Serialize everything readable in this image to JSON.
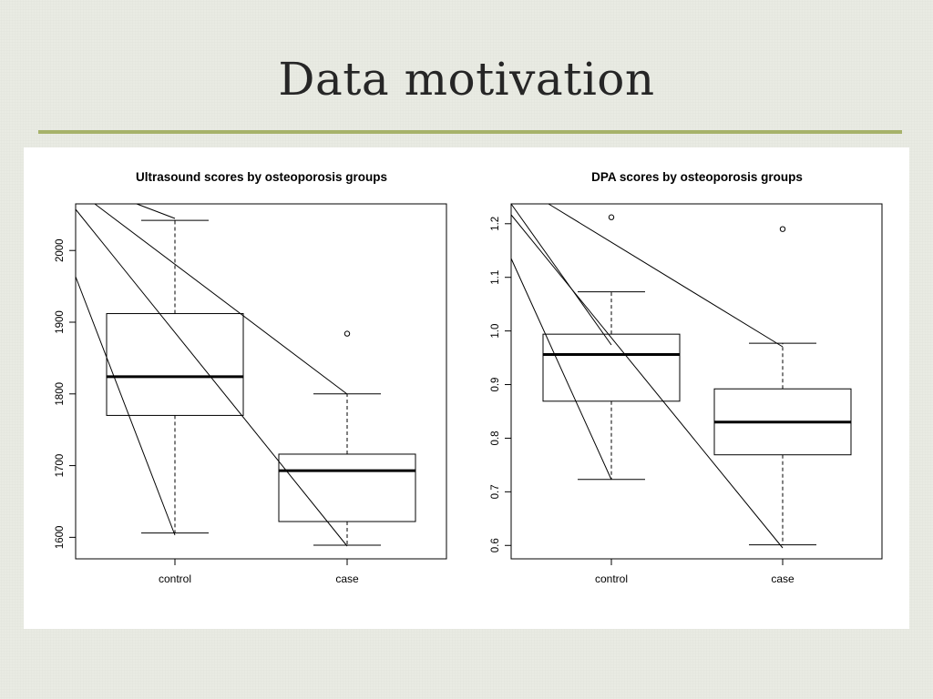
{
  "slide": {
    "title": "Data motivation",
    "accent_color": "#a6b26a"
  },
  "chart_data": [
    {
      "type": "boxplot",
      "title": "Ultrasound scores by osteoporosis groups",
      "xlabel": "",
      "ylabel": "",
      "categories": [
        "control",
        "case"
      ],
      "ylim": [
        1570,
        2065
      ],
      "yticks": [
        1600,
        1700,
        1800,
        1900,
        2000
      ],
      "boxes": [
        {
          "name": "control",
          "whisker_low": 1606,
          "q1": 1770,
          "median": 1824,
          "q3": 1912,
          "whisker_high": 2042,
          "outliers": []
        },
        {
          "name": "case",
          "whisker_low": 1589,
          "q1": 1622,
          "median": 1693,
          "q3": 1716,
          "whisker_high": 1800,
          "outliers": [
            1884
          ]
        }
      ],
      "grid": false,
      "legend": "none"
    },
    {
      "type": "boxplot",
      "title": "DPA scores by osteoporosis groups",
      "xlabel": "",
      "ylabel": "",
      "categories": [
        "control",
        "case"
      ],
      "ylim": [
        0.575,
        1.237
      ],
      "yticks": [
        0.6,
        0.7,
        0.8,
        0.9,
        1.0,
        1.1,
        1.2
      ],
      "ytick_labels": [
        "0.6",
        "0.7",
        "0.8",
        "0.9",
        "1.0",
        "1.1",
        "1.2"
      ],
      "boxes": [
        {
          "name": "control",
          "whisker_low": 0.723,
          "q1": 0.869,
          "median": 0.956,
          "q3": 0.994,
          "whisker_high": 1.073,
          "outliers": [
            1.212
          ]
        },
        {
          "name": "case",
          "whisker_low": 0.601,
          "q1": 0.769,
          "median": 0.83,
          "q3": 0.892,
          "whisker_high": 0.977,
          "outliers": [
            1.19
          ]
        }
      ],
      "grid": false,
      "legend": "none"
    }
  ]
}
